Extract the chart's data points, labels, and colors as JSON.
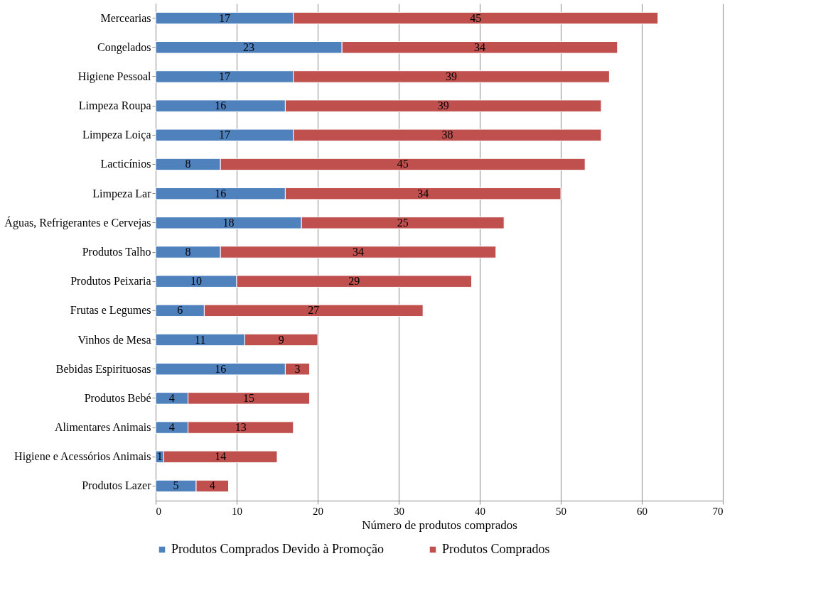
{
  "chart_data": {
    "type": "bar",
    "orientation": "horizontal",
    "stacked": true,
    "xlabel": "Número de produtos comprados",
    "categories": [
      "Mercearias",
      "Congelados",
      "Higiene Pessoal",
      "Limpeza Roupa",
      "Limpeza Loiça",
      "Lacticínios",
      "Limpeza Lar",
      "Águas, Refrigerantes e Cervejas",
      "Produtos Talho",
      "Produtos Peixaria",
      "Frutas e Legumes",
      "Vinhos de Mesa",
      "Bebidas Espirituosas",
      "Produtos Bebé",
      "Alimentares Animais",
      "Higiene e Acessórios Animais",
      "Produtos Lazer"
    ],
    "series": [
      {
        "name": "Produtos Comprados Devido à Promoção",
        "color": "#4f81bd",
        "values": [
          17,
          23,
          17,
          16,
          17,
          8,
          16,
          18,
          8,
          10,
          6,
          11,
          16,
          4,
          4,
          1,
          5
        ]
      },
      {
        "name": "Produtos Comprados",
        "color": "#c0504d",
        "values": [
          45,
          34,
          39,
          39,
          38,
          45,
          34,
          25,
          34,
          29,
          27,
          9,
          3,
          15,
          13,
          14,
          4
        ]
      }
    ],
    "xlim": [
      0,
      70
    ],
    "xticks": [
      0,
      10,
      20,
      30,
      40,
      50,
      60,
      70
    ],
    "grid": "x",
    "legend": "bottom",
    "data_labels": true
  }
}
